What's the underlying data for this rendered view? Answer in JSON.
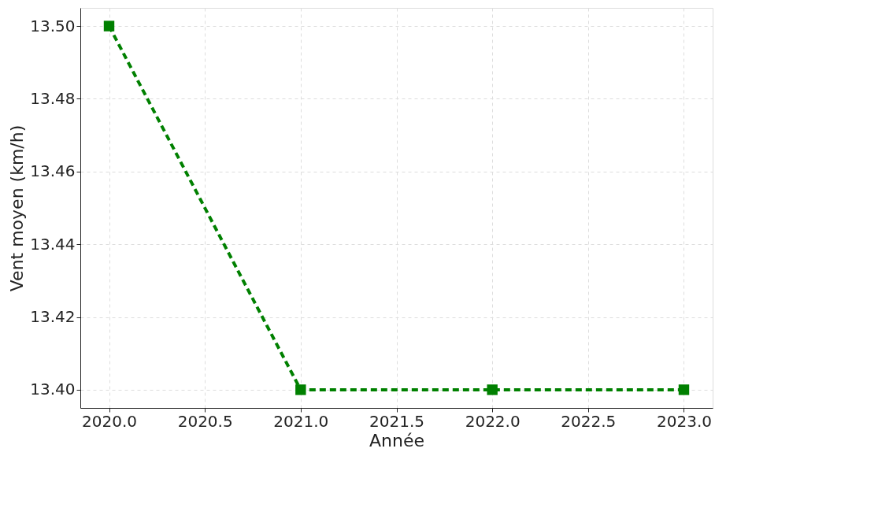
{
  "chart_data": {
    "type": "line",
    "xlabel": "Année",
    "ylabel": "Vent moyen (km/h)",
    "x": [
      2020,
      2021,
      2022,
      2023
    ],
    "series": [
      {
        "color": "#008000",
        "values": [
          13.5,
          13.4,
          13.4,
          13.4
        ]
      }
    ],
    "xlim": [
      2019.85,
      2023.15
    ],
    "ylim": [
      13.395,
      13.505
    ],
    "xticks": [
      {
        "value": 2020,
        "label": "2020.0"
      },
      {
        "value": 2020.5,
        "label": "2020.5"
      },
      {
        "value": 2021,
        "label": "2021.0"
      },
      {
        "value": 2021.5,
        "label": "2021.5"
      },
      {
        "value": 2022,
        "label": "2022.0"
      },
      {
        "value": 2022.5,
        "label": "2022.5"
      },
      {
        "value": 2023,
        "label": "2023.0"
      }
    ],
    "yticks": [
      {
        "value": 13.4,
        "label": "13.40"
      },
      {
        "value": 13.42,
        "label": "13.42"
      },
      {
        "value": 13.44,
        "label": "13.44"
      },
      {
        "value": 13.46,
        "label": "13.46"
      },
      {
        "value": 13.48,
        "label": "13.48"
      },
      {
        "value": 13.5,
        "label": "13.50"
      }
    ],
    "grid": true,
    "marker": "square",
    "line_style": "dashed"
  }
}
